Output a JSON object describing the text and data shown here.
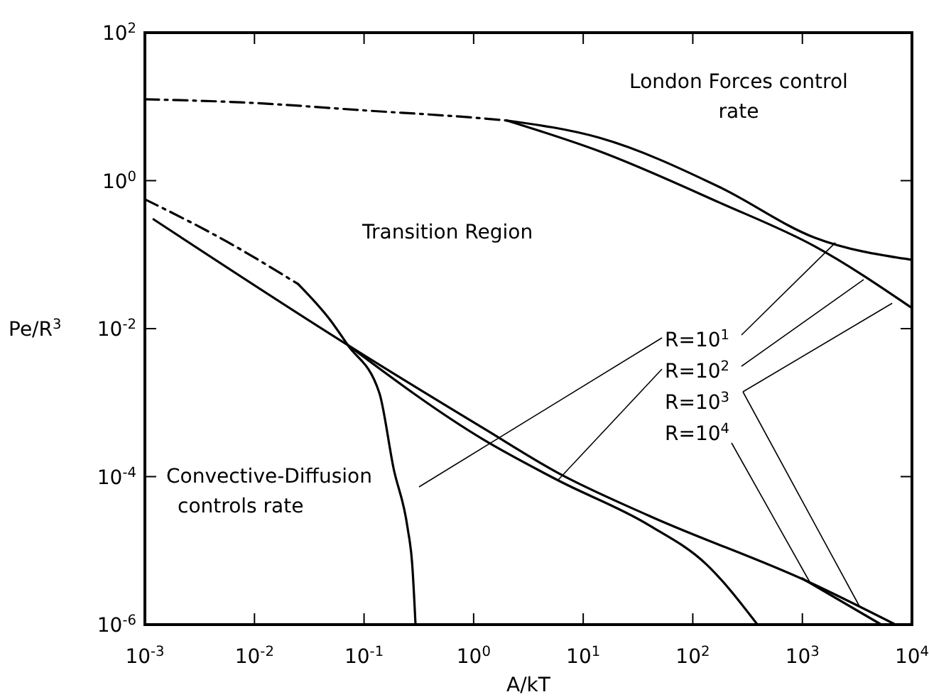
{
  "chart_data": {
    "type": "line",
    "xlabel": "A/kT",
    "ylabel": "Pe/R$^{3}$",
    "log": "xy",
    "grid": false,
    "marker": "none",
    "xlim": [
      0.001,
      10000
    ],
    "ylim": [
      1e-06,
      100
    ],
    "xticks": [
      {
        "value": 0.001,
        "label": "10$^{-3}$"
      },
      {
        "value": 0.01,
        "label": "10$^{-2}$"
      },
      {
        "value": 0.1,
        "label": "10$^{-1}$"
      },
      {
        "value": 1,
        "label": "10$^{0}$"
      },
      {
        "value": 10,
        "label": "10$^{1}$"
      },
      {
        "value": 100,
        "label": "10$^{2}$"
      },
      {
        "value": 1000,
        "label": "10$^{3}$"
      },
      {
        "value": 10000,
        "label": "10$^{4}$"
      }
    ],
    "yticks": [
      {
        "value": 1e-06,
        "label": "10$^{-6}$"
      },
      {
        "value": 0.0001,
        "label": "10$^{-4}$"
      },
      {
        "value": 0.01,
        "label": "10$^{-2}$"
      },
      {
        "value": 1,
        "label": "10$^{0}$"
      },
      {
        "value": 100,
        "label": "10$^{2}$"
      }
    ],
    "series": [
      {
        "color": "#000000",
        "line_style": "dashed",
        "x": [
          0.001,
          0.01,
          0.1,
          1,
          2
        ],
        "values": [
          12.6,
          11.2,
          8.9,
          7.1,
          6.5
        ]
      },
      {
        "color": "#000000",
        "line_style": "solid",
        "x": [
          2,
          14,
          178,
          1290,
          10000
        ],
        "values": [
          6.5,
          3.8,
          0.81,
          0.17,
          0.085
        ]
      },
      {
        "color": "#000000",
        "line_style": "solid",
        "x": [
          2,
          14,
          178,
          1290,
          10000
        ],
        "values": [
          6.5,
          2.5,
          0.5,
          0.13,
          0.019
        ]
      },
      {
        "color": "#000000",
        "line_style": "dashed",
        "x": [
          0.001,
          0.0056,
          0.025
        ],
        "values": [
          0.56,
          0.15,
          0.04
        ]
      },
      {
        "color": "#000000",
        "line_style": "solid",
        "x": [
          0.025,
          0.05,
          0.071,
          0.138,
          0.186,
          0.25,
          0.275,
          0.295
        ],
        "values": [
          0.04,
          0.0126,
          0.006,
          0.00135,
          0.000129,
          2e-05,
          6.6e-06,
          1e-06
        ]
      },
      {
        "color": "#000000",
        "line_style": "solid",
        "x": [
          0.0012,
          0.071,
          1.23,
          5.9,
          40,
          1175,
          7080
        ],
        "values": [
          0.3,
          0.006,
          0.00045,
          0.000112,
          2.95e-05,
          3.7e-06,
          1e-06
        ]
      },
      {
        "color": "#000000",
        "line_style": "solid",
        "x": [
          0.071,
          1.23,
          5.9,
          40,
          132,
          389
        ],
        "values": [
          0.006,
          0.000316,
          8.9e-05,
          2.2e-05,
          6.6e-06,
          1e-06
        ]
      },
      {
        "color": "#000000",
        "line_style": "solid",
        "x": [
          1000,
          5250
        ],
        "values": [
          4.2e-06,
          1e-06
        ]
      }
    ],
    "annotations": [
      "London Forces control rate",
      "Transition Region",
      "Convective-Diffusion controls rate",
      {
        "text": "R=10$^{1}$",
        "x": 2000,
        "y": 0.145
      },
      {
        "text": "R=10$^{2}$",
        "x": 3630,
        "y": 0.046
      },
      {
        "text": "R=10$^{3}$",
        "x": 6600,
        "y": 0.022
      },
      {
        "text": "R=10$^{4}$",
        "x": 1175,
        "y": 3.7e-06
      }
    ]
  }
}
